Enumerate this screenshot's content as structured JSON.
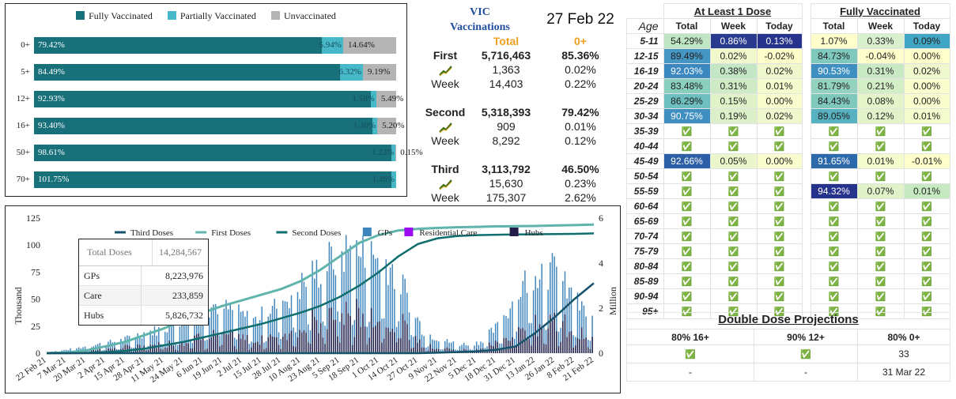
{
  "dose_bars": {
    "legend": [
      {
        "label": "Fully Vaccinated",
        "color": "#17707a"
      },
      {
        "label": "Partially Vaccinated",
        "color": "#46b8c8"
      },
      {
        "label": "Unvaccinated",
        "color": "#b4b4b4"
      }
    ],
    "rows": [
      {
        "age": "0+",
        "full": 79.42,
        "partial": 5.94,
        "unvax": 14.64,
        "full_label": "79.42%",
        "partial_label": "5.94%",
        "unvax_label": "14.64%"
      },
      {
        "age": "5+",
        "full": 84.49,
        "partial": 6.32,
        "unvax": 9.19,
        "full_label": "84.49%",
        "partial_label": "6.32%",
        "unvax_label": "9.19%"
      },
      {
        "age": "12+",
        "full": 92.93,
        "partial": 1.58,
        "unvax": 5.49,
        "full_label": "92.93%",
        "partial_label": "1.58%",
        "unvax_label": "5.49%"
      },
      {
        "age": "16+",
        "full": 93.4,
        "partial": 1.4,
        "unvax": 5.2,
        "full_label": "93.40%",
        "partial_label": "1.40%",
        "unvax_label": "5.20%"
      },
      {
        "age": "50+",
        "full": 98.61,
        "partial": 1.23,
        "unvax": 0.15,
        "full_label": "98.61%",
        "partial_label": "1.23%",
        "unvax_label": "0.15%"
      },
      {
        "age": "70+",
        "full": 101.75,
        "partial": 1.46,
        "unvax": 0,
        "full_label": "101.75%",
        "partial_label": "1.46%",
        "unvax_label": ""
      }
    ]
  },
  "summary": {
    "title_line1": "VIC",
    "title_line2": "Vaccinations",
    "date": "27 Feb 22",
    "col_total": "Total",
    "col_pct": "0+",
    "groups": [
      {
        "name": "First",
        "total": "5,716,463",
        "pct": "85.36%",
        "day": "1,363",
        "day_pct": "0.02%",
        "week_label": "Week",
        "week": "14,403",
        "week_pct": "0.22%"
      },
      {
        "name": "Second",
        "total": "5,318,393",
        "pct": "79.42%",
        "day": "909",
        "day_pct": "0.01%",
        "week_label": "Week",
        "week": "8,292",
        "week_pct": "0.12%"
      },
      {
        "name": "Third",
        "total": "3,113,792",
        "pct": "46.50%",
        "day": "15,630",
        "day_pct": "0.23%",
        "week_label": "Week",
        "week": "175,307",
        "week_pct": "2.62%"
      }
    ]
  },
  "chart_data": {
    "type": "bar",
    "legend": [
      {
        "name": "Third Doses",
        "kind": "line",
        "color": "#16546b"
      },
      {
        "name": "First Doses",
        "kind": "line",
        "color": "#5fb4ac"
      },
      {
        "name": "Second Doses",
        "kind": "line",
        "color": "#0e6e6e"
      },
      {
        "name": "GPs",
        "kind": "bar",
        "color": "#3f85bd"
      },
      {
        "name": "Residential.Care",
        "kind": "bar",
        "color": "#9d0bf0"
      },
      {
        "name": "Hubs",
        "kind": "bar",
        "color": "#231c47"
      }
    ],
    "x_ticks": [
      "22 Feb 21",
      "7 Mar 21",
      "20 Mar 21",
      "2 Apr 21",
      "15 Apr 21",
      "28 Apr 21",
      "11 May 21",
      "24 May 21",
      "6 Jun 21",
      "19 Jun 21",
      "2 Jul 21",
      "15 Jul 21",
      "28 Jul 21",
      "10 Aug 21",
      "23 Aug 21",
      "5 Sep 21",
      "18 Sep 21",
      "1 Oct 21",
      "14 Oct 21",
      "27 Oct 21",
      "9 Nov 21",
      "22 Nov 21",
      "5 Dec 21",
      "18 Dec 21",
      "31 Dec 21",
      "13 Jan 22",
      "26 Jan 22",
      "8 Feb 22",
      "21 Feb 22"
    ],
    "ylabel": "Thousand",
    "ylim": [
      0,
      125
    ],
    "y_ticks": [
      0,
      25,
      50,
      75,
      100,
      125
    ],
    "y2label": "Million",
    "y2lim": [
      0,
      6
    ],
    "y2_ticks": [
      0,
      2,
      4,
      6
    ],
    "cumulative_millions": {
      "first": [
        0,
        0.03,
        0.12,
        0.3,
        0.5,
        0.8,
        1.1,
        1.45,
        1.8,
        2.1,
        2.35,
        2.6,
        2.85,
        3.2,
        3.7,
        4.3,
        4.9,
        5.25,
        5.45,
        5.52,
        5.56,
        5.59,
        5.61,
        5.63,
        5.64,
        5.65,
        5.67,
        5.69,
        5.71
      ],
      "second": [
        0,
        0,
        0.01,
        0.05,
        0.1,
        0.2,
        0.35,
        0.5,
        0.7,
        0.9,
        1.1,
        1.3,
        1.55,
        1.8,
        2.1,
        2.5,
        3.0,
        3.6,
        4.3,
        4.85,
        5.1,
        5.2,
        5.24,
        5.26,
        5.27,
        5.28,
        5.29,
        5.3,
        5.32
      ],
      "third": [
        0,
        0,
        0,
        0,
        0,
        0,
        0,
        0,
        0,
        0,
        0,
        0,
        0,
        0,
        0,
        0,
        0,
        0,
        0,
        0,
        0.02,
        0.05,
        0.08,
        0.15,
        0.3,
        0.9,
        1.6,
        2.4,
        3.11
      ]
    },
    "daily_thousands_total": [
      1,
      3,
      6,
      9,
      12,
      18,
      22,
      28,
      40,
      45,
      38,
      30,
      42,
      55,
      70,
      85,
      95,
      90,
      88,
      60,
      20,
      12,
      8,
      10,
      25,
      55,
      80,
      75,
      50,
      30
    ],
    "table": {
      "header_label": "Total Doses",
      "header_value": "14,284,567",
      "rows": [
        {
          "label": "GPs",
          "value": "8,223,976"
        },
        {
          "label": "Care",
          "value": "233,859"
        },
        {
          "label": "Hubs",
          "value": "5,826,732"
        }
      ]
    }
  },
  "age_table": {
    "group1": "At Least 1 Dose",
    "group2": "Fully Vaccinated",
    "age_header": "Age",
    "col_headers": [
      "Total",
      "Week",
      "Today"
    ],
    "check": "✅",
    "rows": [
      {
        "age": "5-11",
        "d1": [
          "54.29%",
          "0.86%",
          "0.13%"
        ],
        "fv": [
          "1.07%",
          "0.33%",
          "0.09%"
        ]
      },
      {
        "age": "12-15",
        "d1": [
          "89.49%",
          "0.02%",
          "-0.02%"
        ],
        "fv": [
          "84.73%",
          "-0.04%",
          "0.00%"
        ]
      },
      {
        "age": "16-19",
        "d1": [
          "92.03%",
          "0.38%",
          "0.02%"
        ],
        "fv": [
          "90.53%",
          "0.31%",
          "0.02%"
        ]
      },
      {
        "age": "20-24",
        "d1": [
          "83.48%",
          "0.31%",
          "0.01%"
        ],
        "fv": [
          "81.79%",
          "0.21%",
          "0.00%"
        ]
      },
      {
        "age": "25-29",
        "d1": [
          "86.29%",
          "0.15%",
          "0.00%"
        ],
        "fv": [
          "84.43%",
          "0.08%",
          "0.00%"
        ]
      },
      {
        "age": "30-34",
        "d1": [
          "90.75%",
          "0.19%",
          "0.02%"
        ],
        "fv": [
          "89.05%",
          "0.12%",
          "0.01%"
        ]
      },
      {
        "age": "35-39",
        "d1": null,
        "fv": null
      },
      {
        "age": "40-44",
        "d1": null,
        "fv": null
      },
      {
        "age": "45-49",
        "d1": [
          "92.66%",
          "0.05%",
          "0.00%"
        ],
        "fv": [
          "91.65%",
          "0.01%",
          "-0.01%"
        ]
      },
      {
        "age": "50-54",
        "d1": null,
        "fv": null
      },
      {
        "age": "55-59",
        "d1": null,
        "fv": [
          "94.32%",
          "0.07%",
          "0.01%"
        ]
      },
      {
        "age": "60-64",
        "d1": null,
        "fv": null
      },
      {
        "age": "65-69",
        "d1": null,
        "fv": null
      },
      {
        "age": "70-74",
        "d1": null,
        "fv": null
      },
      {
        "age": "75-79",
        "d1": null,
        "fv": null
      },
      {
        "age": "80-84",
        "d1": null,
        "fv": null
      },
      {
        "age": "85-89",
        "d1": null,
        "fv": null
      },
      {
        "age": "90-94",
        "d1": null,
        "fv": null
      },
      {
        "age": "95+",
        "d1": null,
        "fv": null
      }
    ],
    "cell_colors": {
      "5-11": {
        "d1": [
          "#bfe5c4",
          "#2a3a8f",
          "#25338c"
        ],
        "fv": [
          "#ffffcc",
          "#d9f0cf",
          "#41a6c6"
        ]
      },
      "12-15": {
        "d1": [
          "#4596c2",
          "#f1f9cc",
          "#ffffcc"
        ],
        "fv": [
          "#7ec9bc",
          "#ffffcc",
          "#ffffcc"
        ]
      },
      "16-19": {
        "d1": [
          "#3a88bf",
          "#c3e6c4",
          "#eef8cc"
        ],
        "fv": [
          "#3f8fc1",
          "#c8e9c4",
          "#eef8cc"
        ]
      },
      "20-24": {
        "d1": [
          "#8acfbe",
          "#cfebc5",
          "#f4fbcc"
        ],
        "fv": [
          "#93d2bf",
          "#d3eec7",
          "#fafdce"
        ]
      },
      "25-29": {
        "d1": [
          "#6dc0bf",
          "#e0f3c8",
          "#fafdce"
        ],
        "fv": [
          "#7ec9bc",
          "#e5f5c9",
          "#fafdce"
        ]
      },
      "30-34": {
        "d1": [
          "#3f8fc1",
          "#dbf0c8",
          "#eef8cc"
        ],
        "fv": [
          "#56b1c0",
          "#e2f3c9",
          "#f4fbcc"
        ]
      },
      "45-49": {
        "d1": [
          "#2c5fa5",
          "#ebf7cb",
          "#fafdce"
        ],
        "fv": [
          "#2c6aab",
          "#f4fbcc",
          "#ffffcc"
        ]
      },
      "55-59": {
        "fv": [
          "#25338c",
          "#dff2c8",
          "#c7e9c2"
        ]
      }
    }
  },
  "projections": {
    "title": "Double Dose Projections",
    "headers": [
      "80% 16+",
      "90% 12+",
      "80% 0+"
    ],
    "row1": [
      "✅",
      "✅",
      "33"
    ],
    "row2": [
      "-",
      "-",
      "31 Mar 22"
    ]
  }
}
